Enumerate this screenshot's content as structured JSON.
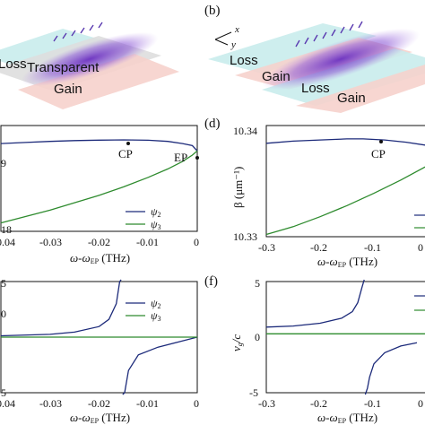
{
  "panel_labels": {
    "b": "(b)",
    "d": "(d)",
    "f": "(f)"
  },
  "schematic_left": {
    "layers": [
      "Loss",
      "Transparent",
      "Gain"
    ]
  },
  "schematic_right": {
    "layers": [
      "Loss",
      "Gain",
      "Loss",
      "Gain"
    ],
    "axis_x": "x",
    "axis_y": "y"
  },
  "colors": {
    "psi2": "#1c2a7a",
    "psi3": "#2e8b2e",
    "loss": "#c9ecec",
    "gain": "#f6d2cc",
    "transparent": "#dcdcdc",
    "beam": "#7b3fc4"
  },
  "chart_data": [
    {
      "id": "c",
      "type": "line",
      "xlabel": "ω-ω",
      "xlabel_sub": "EP",
      "xlabel_unit": " (THz)",
      "xticks": [
        "-0.04",
        "-0.03",
        "-0.02",
        "-0.01",
        "0"
      ],
      "yticks": [
        "9",
        "18"
      ],
      "xlim": [
        -0.04,
        0
      ],
      "annotations": [
        "CP",
        "EP"
      ],
      "legend": [
        "ψ",
        "ψ"
      ],
      "legend_sub": [
        "2",
        "3"
      ],
      "series": [
        {
          "name": "ψ2",
          "x": [
            -0.04,
            -0.035,
            -0.03,
            -0.025,
            -0.02,
            -0.015,
            -0.01,
            -0.006,
            -0.003,
            -0.001,
            0
          ],
          "y": [
            0.83,
            0.84,
            0.85,
            0.858,
            0.862,
            0.864,
            0.861,
            0.85,
            0.83,
            0.81,
            0.76
          ]
        },
        {
          "name": "ψ3",
          "x": [
            -0.04,
            -0.035,
            -0.03,
            -0.025,
            -0.02,
            -0.015,
            -0.01,
            -0.006,
            -0.003,
            -0.001,
            0
          ],
          "y": [
            0.08,
            0.14,
            0.2,
            0.27,
            0.34,
            0.42,
            0.51,
            0.59,
            0.66,
            0.72,
            0.76
          ]
        }
      ]
    },
    {
      "id": "d",
      "type": "line",
      "ylabel": "β (μm⁻¹)",
      "xlabel": "ω-ω",
      "xlabel_sub": "EP",
      "xlabel_unit": " (THz)",
      "xticks": [
        "-0.3",
        "-0.2",
        "-0.1",
        "0"
      ],
      "yticks": [
        "10.34",
        "10.33"
      ],
      "xlim": [
        -0.3,
        0
      ],
      "ylim": [
        10.33,
        10.34
      ],
      "annotations": [
        "CP"
      ],
      "series": [
        {
          "name": "ψ2",
          "x": [
            -0.3,
            -0.25,
            -0.2,
            -0.15,
            -0.12,
            -0.08,
            -0.04,
            0
          ],
          "y": [
            10.3384,
            10.3386,
            10.3387,
            10.3388,
            10.3388,
            10.3387,
            10.3385,
            10.3382
          ]
        },
        {
          "name": "ψ3",
          "x": [
            -0.3,
            -0.25,
            -0.2,
            -0.15,
            -0.1,
            -0.05,
            0
          ],
          "y": [
            10.3302,
            10.3309,
            10.3318,
            10.3328,
            10.3339,
            10.3351,
            10.3364
          ]
        }
      ]
    },
    {
      "id": "e",
      "type": "line",
      "xlabel": "ω-ω",
      "xlabel_sub": "EP",
      "xlabel_unit": " (THz)",
      "xticks": [
        "-0.04",
        "-0.03",
        "-0.02",
        "-0.01",
        "0"
      ],
      "yticks": [
        "5",
        "0",
        "5"
      ],
      "xlim": [
        -0.04,
        0
      ],
      "ylim": [
        -5,
        5
      ],
      "legend": [
        "ψ",
        "ψ"
      ],
      "legend_sub": [
        "2",
        "3"
      ],
      "series": [
        {
          "name": "ψ2",
          "x": [
            -0.04,
            -0.03,
            -0.025,
            -0.02,
            -0.018,
            -0.0165,
            -0.0158,
            -0.0155,
            -0.0152,
            -0.0148,
            -0.014,
            -0.012,
            -0.008,
            -0.004,
            0
          ],
          "y": [
            0.12,
            0.25,
            0.45,
            0.95,
            1.6,
            3.0,
            5.0,
            5.6,
            -5.6,
            -5.0,
            -3.0,
            -1.6,
            -0.9,
            -0.45,
            0
          ]
        },
        {
          "name": "ψ3",
          "x": [
            -0.04,
            0
          ],
          "y": [
            0,
            0
          ]
        }
      ]
    },
    {
      "id": "f",
      "type": "line",
      "ylabel": "v",
      "ylabel_sub": "g",
      "ylabel_rest": "/c",
      "xlabel": "ω-ω",
      "xlabel_sub": "EP",
      "xlabel_unit": " (THz)",
      "xticks": [
        "-0.3",
        "-0.2",
        "-0.1",
        "0"
      ],
      "yticks": [
        "5",
        "0",
        "-5"
      ],
      "xlim": [
        -0.3,
        0
      ],
      "ylim": [
        -5,
        5
      ],
      "series": [
        {
          "name": "ψ2",
          "x": [
            -0.3,
            -0.25,
            -0.2,
            -0.16,
            -0.14,
            -0.13,
            -0.122,
            -0.118,
            -0.116,
            -0.112,
            -0.108,
            -0.1,
            -0.08,
            -0.05,
            -0.02
          ],
          "y": [
            0.9,
            1.0,
            1.25,
            1.7,
            2.3,
            3.1,
            4.5,
            5.6,
            -5.6,
            -4.6,
            -3.6,
            -2.4,
            -1.4,
            -0.8,
            -0.5
          ]
        },
        {
          "name": "ψ3",
          "x": [
            -0.3,
            0
          ],
          "y": [
            0.3,
            0.3
          ]
        }
      ]
    }
  ]
}
